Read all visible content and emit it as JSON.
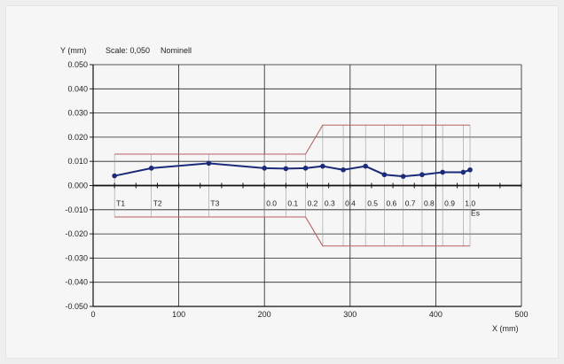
{
  "chart_data": {
    "type": "line",
    "header": {
      "ylabel": "Y (mm)",
      "scale": "Scale: 0,050",
      "mode": "Nominell"
    },
    "xlabel": "X (mm)",
    "xlim": [
      0,
      500
    ],
    "ylim": [
      -0.05,
      0.05
    ],
    "x_ticks": [
      0,
      100,
      200,
      300,
      400,
      500
    ],
    "y_ticks": [
      "0.050",
      "0.040",
      "0.030",
      "0.020",
      "0.010",
      "0.000",
      "-0.010",
      "-0.020",
      "-0.030",
      "-0.040",
      "-0.050"
    ],
    "grid": true,
    "series": [
      {
        "color": "#1c2a7a",
        "x": [
          25,
          68,
          135,
          200,
          225,
          248,
          268,
          292,
          318,
          340,
          362,
          384,
          408,
          432,
          440
        ],
        "y": [
          0.004,
          0.0072,
          0.0092,
          0.0072,
          0.007,
          0.0072,
          0.008,
          0.0065,
          0.008,
          0.0045,
          0.0038,
          0.0045,
          0.0055,
          0.0055,
          0.0065
        ]
      }
    ],
    "tolerance": {
      "color": "#b86060",
      "upper": {
        "x": [
          25,
          248,
          268,
          440
        ],
        "y": [
          0.013,
          0.013,
          0.025,
          0.025
        ]
      },
      "lower": {
        "x": [
          25,
          248,
          268,
          440
        ],
        "y": [
          -0.013,
          -0.013,
          -0.025,
          -0.025
        ]
      }
    },
    "stations": [
      {
        "label": "T1",
        "x": 25
      },
      {
        "label": "T2",
        "x": 68
      },
      {
        "label": "T3",
        "x": 135
      },
      {
        "label": "0.0",
        "x": 200
      },
      {
        "label": "0.1",
        "x": 225
      },
      {
        "label": "0.2",
        "x": 248
      },
      {
        "label": "0.3",
        "x": 268
      },
      {
        "label": "0.4",
        "x": 292
      },
      {
        "label": "0.5",
        "x": 318
      },
      {
        "label": "0.6",
        "x": 340
      },
      {
        "label": "0.7",
        "x": 362
      },
      {
        "label": "0.8",
        "x": 384
      },
      {
        "label": "0.9",
        "x": 408
      },
      {
        "label": "1.0",
        "x": 432
      },
      {
        "label": "Es",
        "x": 440
      }
    ]
  }
}
